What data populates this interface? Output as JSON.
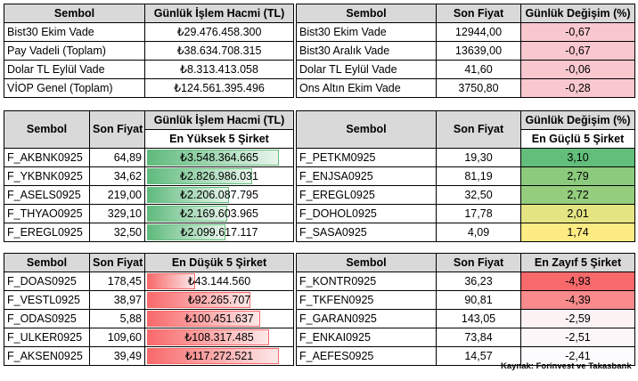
{
  "t1": {
    "headers": [
      "Sembol",
      "Günlük İşlem Hacmi (TL)"
    ],
    "rows": [
      [
        "Bist30 Ekim Vade",
        "₺29.476.458.300"
      ],
      [
        "Pay Vadeli (Toplam)",
        "₺38.634.708.315"
      ],
      [
        "Dolar TL Eylül Vade",
        "₺8.313.413.058"
      ],
      [
        "VİOP Genel (Toplam)",
        "₺124.561.395.496"
      ]
    ]
  },
  "t2": {
    "headers": [
      "Sembol",
      "Son Fiyat",
      "Günlük Değişim (%)"
    ],
    "rows": [
      [
        "Bist30 Ekim Vade",
        "12944,00",
        "-0,67"
      ],
      [
        "Bist30 Aralık Vade",
        "13639,00",
        "-0,67"
      ],
      [
        "Dolar TL Eylül Vade",
        "41,60",
        "-0,06"
      ],
      [
        "Ons Altın Ekim Vade",
        "3750,80",
        "-0,28"
      ]
    ]
  },
  "t3": {
    "headers": [
      "Sembol",
      "Son Fiyat",
      "Günlük İşlem Hacmi (TL)"
    ],
    "subheader": "En Yüksek 5 Şirket",
    "rows": [
      {
        "sym": "F_AKBNK0925",
        "price": "64,89",
        "vol": "₺3.548.364.665",
        "fill": 1.0
      },
      {
        "sym": "F_YKBNK0925",
        "price": "34,62",
        "vol": "₺2.826.986.031",
        "fill": 0.797
      },
      {
        "sym": "F_ASELS0925",
        "price": "219,00",
        "vol": "₺2.206.087.795",
        "fill": 0.622
      },
      {
        "sym": "F_THYAO0925",
        "price": "329,10",
        "vol": "₺2.169.603.965",
        "fill": 0.611
      },
      {
        "sym": "F_EREGL0925",
        "price": "32,50",
        "vol": "₺2.099.617.117",
        "fill": 0.592
      }
    ]
  },
  "t4": {
    "headers": [
      "Sembol",
      "Son Fiyat",
      "Günlük Değişim (%)"
    ],
    "subheader": "En Güçlü 5 Şirket",
    "rows": [
      {
        "sym": "F_PETKM0925",
        "price": "19,30",
        "chg": "3,10",
        "color": "#63be7b"
      },
      {
        "sym": "F_ENJSA0925",
        "price": "81,19",
        "chg": "2,79",
        "color": "#8ccb7e"
      },
      {
        "sym": "F_EREGL0925",
        "price": "32,50",
        "chg": "2,72",
        "color": "#95cd7e"
      },
      {
        "sym": "F_DOHOL0925",
        "price": "17,78",
        "chg": "2,01",
        "color": "#e4e483"
      },
      {
        "sym": "F_SASA0925",
        "price": "4,09",
        "chg": "1,74",
        "color": "#ffeb84"
      }
    ]
  },
  "t5": {
    "headers": [
      "Sembol",
      "Son Fiyat",
      "En Düşük 5 Şirket"
    ],
    "rows": [
      {
        "sym": "F_DOAS0925",
        "price": "178,45",
        "vol": "₺43.144.560",
        "fill": 0.368
      },
      {
        "sym": "F_VESTL0925",
        "price": "38,97",
        "vol": "₺92.265.707",
        "fill": 0.787
      },
      {
        "sym": "F_ODAS0925",
        "price": "5,88",
        "vol": "₺100.451.637",
        "fill": 0.857
      },
      {
        "sym": "F_ULKER0925",
        "price": "109,60",
        "vol": "₺108.317.485",
        "fill": 0.924
      },
      {
        "sym": "F_AKSEN0925",
        "price": "39,49",
        "vol": "₺117.272.521",
        "fill": 1.0
      }
    ]
  },
  "t6": {
    "headers": [
      "Sembol",
      "Son Fiyat",
      "En Zayıf 5 Şirket"
    ],
    "rows": [
      {
        "sym": "F_KONTR0925",
        "price": "36,23",
        "chg": "-4,93",
        "color": "#f8696b"
      },
      {
        "sym": "F_TKFEN0925",
        "price": "90,81",
        "chg": "-4,39",
        "color": "#f98b8c"
      },
      {
        "sym": "F_GARAN0925",
        "price": "143,05",
        "chg": "-2,59",
        "color": "#fcf2f4"
      },
      {
        "sym": "F_ENKAI0925",
        "price": "73,84",
        "chg": "-2,51",
        "color": "#fcf6f8"
      },
      {
        "sym": "F_AEFES0925",
        "price": "14,57",
        "chg": "-2,41",
        "color": "#fcfcff"
      }
    ]
  },
  "source": "Kaynak: Forinvest ve Takasbank"
}
